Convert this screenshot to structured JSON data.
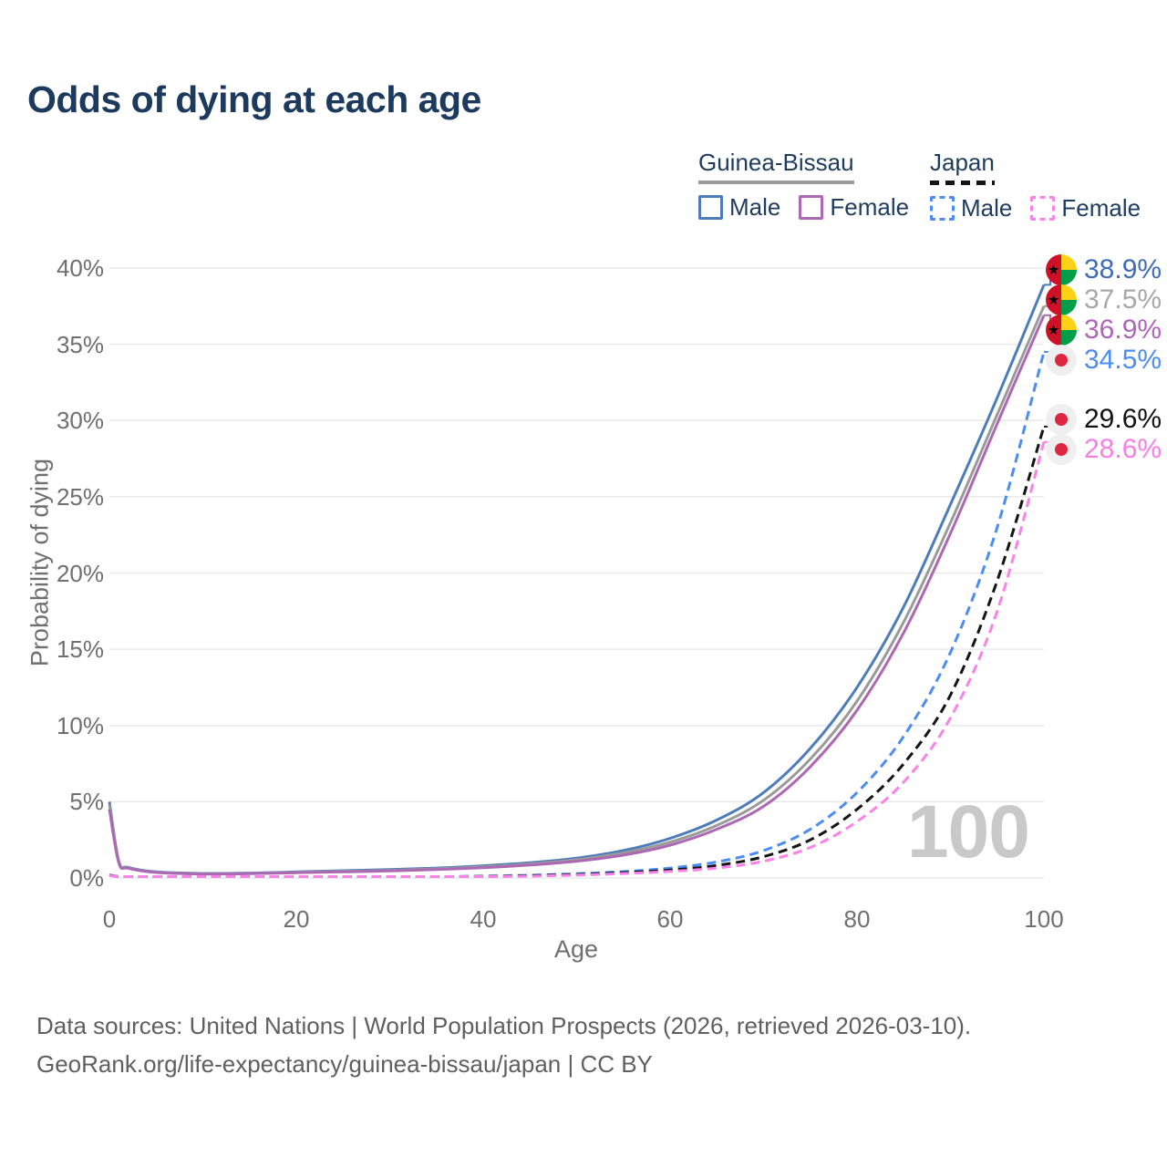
{
  "title": "Odds of dying at each age",
  "watermark": "100",
  "legend": {
    "groups": [
      {
        "label": "Guinea-Bissau",
        "underline_style": "solid",
        "underline_color": "#9b9b9b",
        "items": [
          {
            "label": "Male",
            "color": "#4d7cbb",
            "dashed": false
          },
          {
            "label": "Female",
            "color": "#ad68b4",
            "dashed": false
          }
        ]
      },
      {
        "label": "Japan",
        "underline_style": "dashed",
        "underline_color": "#141414",
        "items": [
          {
            "label": "Male",
            "color": "#4c8df5",
            "dashed": true
          },
          {
            "label": "Female",
            "color": "#fa82e9",
            "dashed": true
          }
        ]
      }
    ]
  },
  "footer": {
    "line1": "Data sources: United Nations | World Population Prospects (2026, retrieved 2026-03-10).",
    "line2": "GeoRank.org/life-expectancy/guinea-bissau/japan | CC BY"
  },
  "flags": {
    "guinea_bissau": {
      "red": "#ce1126",
      "yellow": "#fcd116",
      "green": "#009e49",
      "star": "#000000"
    },
    "japan": {
      "bg": "#efefef",
      "sun": "#df2540"
    }
  },
  "chart_data": {
    "type": "line",
    "title": "Odds of dying at each age",
    "xlabel": "Age",
    "ylabel": "Probability of dying",
    "xlim": [
      0,
      100
    ],
    "ylim": [
      0,
      40
    ],
    "x_ticks": [
      0,
      20,
      40,
      60,
      80,
      100
    ],
    "y_ticks": [
      "0%",
      "5%",
      "10%",
      "15%",
      "20%",
      "25%",
      "30%",
      "35%",
      "40%"
    ],
    "grid": true,
    "legend_position": "top-right",
    "x": [
      0,
      1,
      2,
      5,
      10,
      15,
      20,
      25,
      30,
      35,
      40,
      45,
      50,
      55,
      60,
      65,
      70,
      75,
      80,
      85,
      90,
      95,
      100
    ],
    "series": [
      {
        "name": "Guinea-Bissau Male",
        "color": "#4d7cbb",
        "label_color": "#3e6db9",
        "dash": false,
        "flag": "guinea_bissau",
        "end_label": "38.9%",
        "values": [
          5.0,
          1.1,
          0.7,
          0.4,
          0.3,
          0.32,
          0.4,
          0.48,
          0.55,
          0.65,
          0.8,
          1.0,
          1.3,
          1.8,
          2.6,
          3.8,
          5.6,
          8.5,
          12.5,
          17.8,
          24.5,
          31.5,
          38.9
        ]
      },
      {
        "name": "Guinea-Bissau",
        "color": "#9a9a9a",
        "label_color": "#a8a8a8",
        "dash": false,
        "flag": "guinea_bissau",
        "end_label": "37.5%",
        "values": [
          4.8,
          1.05,
          0.67,
          0.38,
          0.28,
          0.3,
          0.37,
          0.44,
          0.5,
          0.6,
          0.73,
          0.92,
          1.2,
          1.65,
          2.35,
          3.45,
          5.1,
          7.8,
          11.6,
          16.8,
          23.3,
          30.4,
          37.5
        ]
      },
      {
        "name": "Guinea-Bissau Female",
        "color": "#ad68b4",
        "label_color": "#b064bc",
        "dash": false,
        "flag": "guinea_bissau",
        "end_label": "36.9%",
        "values": [
          4.5,
          1.0,
          0.64,
          0.36,
          0.26,
          0.28,
          0.34,
          0.4,
          0.46,
          0.55,
          0.67,
          0.85,
          1.1,
          1.5,
          2.15,
          3.2,
          4.7,
          7.3,
          11.0,
          16.1,
          22.6,
          29.8,
          36.9
        ]
      },
      {
        "name": "Japan Male",
        "color": "#4c8df5",
        "label_color": "#4c8df5",
        "dash": true,
        "flag": "japan",
        "end_label": "34.5%",
        "values": [
          0.2,
          0.04,
          0.03,
          0.02,
          0.02,
          0.03,
          0.05,
          0.06,
          0.07,
          0.09,
          0.12,
          0.18,
          0.28,
          0.42,
          0.65,
          1.05,
          1.8,
          3.2,
          5.6,
          9.3,
          14.8,
          23.0,
          34.5
        ]
      },
      {
        "name": "Japan",
        "color": "#141414",
        "label_color": "#111111",
        "dash": true,
        "flag": "japan",
        "end_label": "29.6%",
        "values": [
          0.18,
          0.035,
          0.025,
          0.018,
          0.015,
          0.025,
          0.04,
          0.05,
          0.06,
          0.08,
          0.1,
          0.15,
          0.23,
          0.35,
          0.52,
          0.82,
          1.4,
          2.5,
          4.5,
          7.5,
          12.0,
          19.5,
          29.6
        ]
      },
      {
        "name": "Japan Female",
        "color": "#fa82e9",
        "label_color": "#f97ee7",
        "dash": true,
        "flag": "japan",
        "end_label": "28.6%",
        "values": [
          0.16,
          0.03,
          0.02,
          0.015,
          0.012,
          0.02,
          0.03,
          0.04,
          0.05,
          0.06,
          0.08,
          0.12,
          0.19,
          0.29,
          0.43,
          0.65,
          1.1,
          2.0,
          3.7,
          6.3,
          10.5,
          17.5,
          28.6
        ]
      }
    ]
  }
}
